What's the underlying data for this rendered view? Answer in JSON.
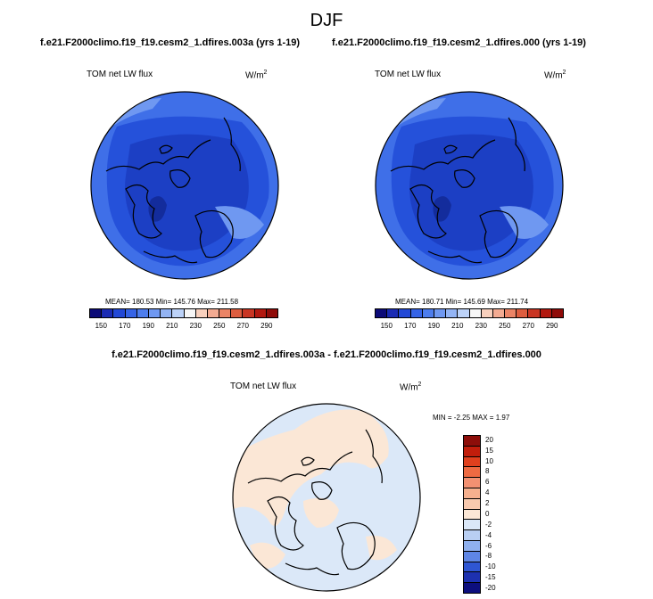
{
  "title": "DJF",
  "chart_data": [
    {
      "type": "heatmap",
      "projection": "north-polar-stereographic",
      "title": "f.e21.F2000climo.f19_f19.cesm2_1.dfires.003a (yrs 1-19)",
      "variable": "TOM net LW flux",
      "units": "W/m",
      "units_exp": "2",
      "stats": "MEAN= 180.53  Min= 145.76  Max= 211.58",
      "mean": 180.53,
      "min": 145.76,
      "max": 211.58,
      "colorbar_ticks": [
        "150",
        "170",
        "190",
        "210",
        "230",
        "250",
        "270",
        "290"
      ],
      "colorbar_levels": [
        140,
        150,
        160,
        170,
        180,
        190,
        200,
        210,
        220,
        230,
        240,
        250,
        260,
        270,
        280,
        290,
        300
      ]
    },
    {
      "type": "heatmap",
      "projection": "north-polar-stereographic",
      "title": "f.e21.F2000climo.f19_f19.cesm2_1.dfires.000 (yrs 1-19)",
      "variable": "TOM net LW flux",
      "units": "W/m",
      "units_exp": "2",
      "stats": "MEAN= 180.71  Min= 145.69  Max= 211.74",
      "mean": 180.71,
      "min": 145.69,
      "max": 211.74,
      "colorbar_ticks": [
        "150",
        "170",
        "190",
        "210",
        "230",
        "250",
        "270",
        "290"
      ],
      "colorbar_levels": [
        140,
        150,
        160,
        170,
        180,
        190,
        200,
        210,
        220,
        230,
        240,
        250,
        260,
        270,
        280,
        290,
        300
      ]
    },
    {
      "type": "heatmap",
      "projection": "north-polar-stereographic",
      "title": "f.e21.F2000climo.f19_f19.cesm2_1.dfires.003a - f.e21.F2000climo.f19_f19.cesm2_1.dfires.000",
      "variable": "TOM net LW flux",
      "units": "W/m",
      "units_exp": "2",
      "stats": "MIN =  -2.25 MAX =   1.97",
      "min": -2.25,
      "max": 1.97,
      "colorbar_ticks": [
        "20",
        "15",
        "10",
        "8",
        "6",
        "4",
        "2",
        "0",
        "-2",
        "-4",
        "-6",
        "-8",
        "-10",
        "-15",
        "-20"
      ]
    }
  ],
  "colors": {
    "abs_scale": [
      "#0c0b78",
      "#1a2bb4",
      "#2248d6",
      "#3563e6",
      "#4d7ded",
      "#6f98f1",
      "#93b4f4",
      "#bcd2f8",
      "#f6f6f6",
      "#f8d0bd",
      "#f3ab92",
      "#eb8466",
      "#dd5d3f",
      "#c93523",
      "#b2180f",
      "#8f0b08"
    ],
    "diff_scale": [
      "#8d0e0a",
      "#c21e0c",
      "#e0401e",
      "#ee6a42",
      "#f39172",
      "#f6b08e",
      "#f8c9ae",
      "#fbe7d6",
      "#dbe8f8",
      "#b9cff3",
      "#8fb0ee",
      "#5f86e5",
      "#2f56d3",
      "#1d31b0",
      "#0d0f7e"
    ],
    "map_outer": "#3f6fe8",
    "map_mid": "#2551da",
    "map_inner": "#1c3fc4",
    "map_deep": "#132c9c",
    "map_pale": "#6f98f1",
    "diff_warm": "#fbe7d6",
    "diff_cool": "#dbe8f8"
  }
}
